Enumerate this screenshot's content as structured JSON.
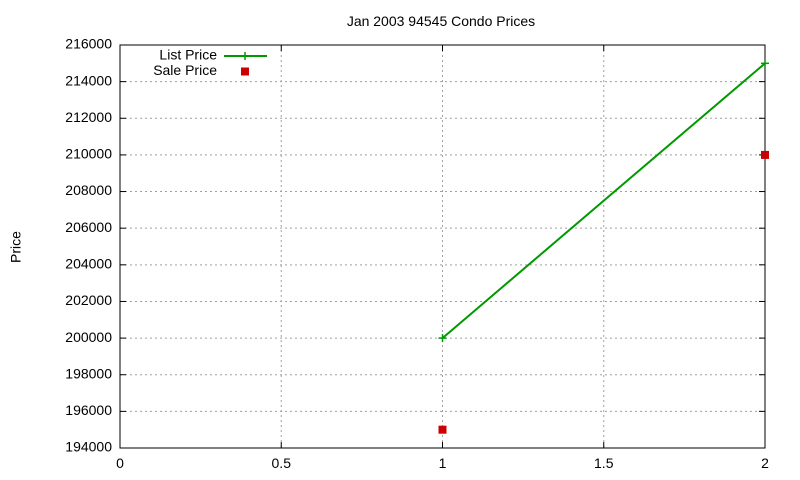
{
  "chart_data": {
    "type": "line",
    "title": "Jan 2003 94545 Condo Prices",
    "xlabel": "",
    "ylabel": "Price",
    "xlim": [
      0,
      2
    ],
    "ylim": [
      194000,
      216000
    ],
    "x_ticks": [
      "0",
      "0.5",
      "1",
      "1.5",
      "2"
    ],
    "x_tick_values": [
      0,
      0.5,
      1,
      1.5,
      2
    ],
    "y_ticks": [
      "194000",
      "196000",
      "198000",
      "200000",
      "202000",
      "204000",
      "206000",
      "208000",
      "210000",
      "212000",
      "214000",
      "216000"
    ],
    "y_tick_values": [
      194000,
      196000,
      198000,
      200000,
      202000,
      204000,
      206000,
      208000,
      210000,
      212000,
      214000,
      216000
    ],
    "grid": true,
    "legend_position": "top-left",
    "series": [
      {
        "name": "List Price",
        "style": "linespoints",
        "marker": "plus",
        "color": "#009900",
        "x": [
          1,
          2
        ],
        "y": [
          200000,
          215000
        ]
      },
      {
        "name": "Sale Price",
        "style": "points",
        "marker": "square",
        "color": "#cc0000",
        "x": [
          1,
          2
        ],
        "y": [
          195000,
          210000
        ]
      }
    ]
  }
}
